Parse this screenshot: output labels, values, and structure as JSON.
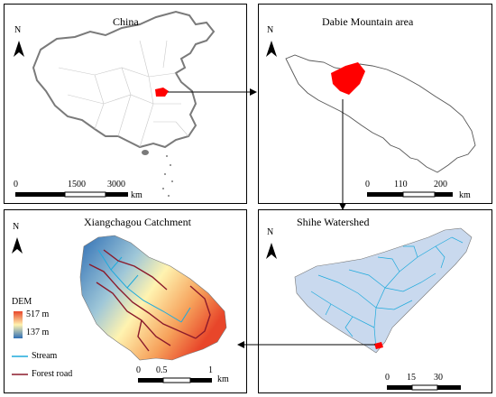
{
  "north_label": "N",
  "panels": {
    "china": {
      "title": "China",
      "scale": [
        "0",
        "1500",
        "3000"
      ],
      "unit": "km"
    },
    "dabie": {
      "title": "Dabie Mountain area",
      "scale": [
        "0",
        "110",
        "200"
      ],
      "unit": "km"
    },
    "catchment": {
      "title": "Xiangchagou Catchment",
      "scale": [
        "0",
        "0.5",
        "1"
      ],
      "unit": "km"
    },
    "shihe": {
      "title": "Shihe Watershed",
      "scale": [
        "0",
        "15",
        "30"
      ],
      "unit": "km"
    }
  },
  "legend": {
    "dem_title": "DEM",
    "dem_high": "517 m",
    "dem_low": "137 m",
    "stream": "Stream",
    "forest_road": "Forest road"
  },
  "colors": {
    "highlight": "#ff0000",
    "stream": "#1eaadc",
    "forest_road": "#8b1a2b",
    "dem_high": "#e8462a",
    "dem_mid": "#fff3b0",
    "dem_low": "#2f6fb5",
    "watershed_fill": "#c9d9ee"
  }
}
